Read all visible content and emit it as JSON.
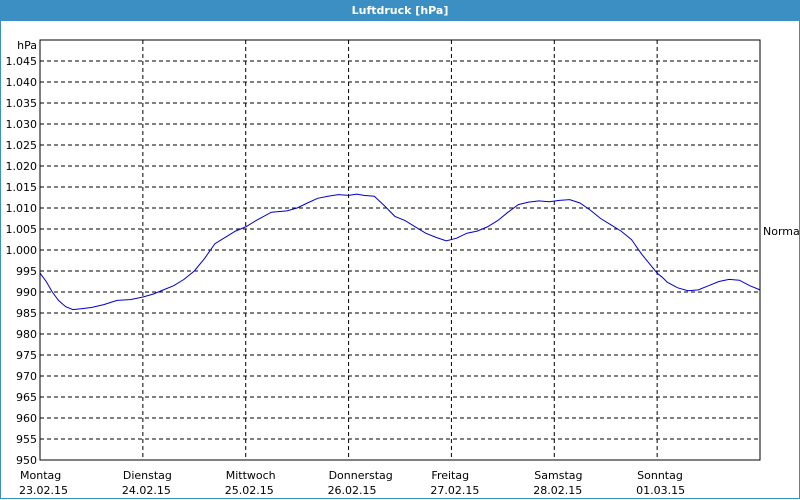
{
  "window": {
    "title": "Luftdruck [hPa]"
  },
  "chart_data": {
    "type": "line",
    "title": "Luftdruck [hPa]",
    "ylabel": "hPa",
    "ylim": [
      950,
      1050
    ],
    "yticks": [
      "950",
      "955",
      "960",
      "965",
      "970",
      "975",
      "980",
      "985",
      "990",
      "995",
      "1.000",
      "1.005",
      "1.010",
      "1.015",
      "1.020",
      "1.025",
      "1.030",
      "1.035",
      "1.040",
      "1.045"
    ],
    "x_days": [
      {
        "day": "Montag",
        "date": "23.02.15"
      },
      {
        "day": "Dienstag",
        "date": "24.02.15"
      },
      {
        "day": "Mittwoch",
        "date": "25.02.15"
      },
      {
        "day": "Donnerstag",
        "date": "26.02.15"
      },
      {
        "day": "Freitag",
        "date": "27.02.15"
      },
      {
        "day": "Samstag",
        "date": "28.02.15"
      },
      {
        "day": "Sonntag",
        "date": "01.03.15"
      }
    ],
    "reference_line": {
      "label": "Normal",
      "value": 1004.5
    },
    "grid": true,
    "xlim": [
      0,
      7
    ],
    "series": [
      {
        "color": "#0000cc",
        "x": [
          0,
          0.06,
          0.12,
          0.18,
          0.25,
          0.32,
          0.4,
          0.5,
          0.62,
          0.75,
          0.88,
          1.0,
          1.1,
          1.2,
          1.3,
          1.4,
          1.5,
          1.6,
          1.7,
          1.8,
          1.9,
          2.0,
          2.1,
          2.25,
          2.4,
          2.5,
          2.6,
          2.7,
          2.8,
          2.9,
          3.0,
          3.08,
          3.15,
          3.25,
          3.35,
          3.45,
          3.55,
          3.65,
          3.75,
          3.85,
          3.95,
          4.05,
          4.15,
          4.25,
          4.35,
          4.45,
          4.55,
          4.65,
          4.75,
          4.85,
          4.95,
          5.05,
          5.15,
          5.25,
          5.35,
          5.45,
          5.55,
          5.65,
          5.75,
          5.85,
          5.95,
          6.0,
          6.05,
          6.1,
          6.2,
          6.3,
          6.4,
          6.5,
          6.6,
          6.7,
          6.8,
          6.9,
          7.0
        ],
        "values": [
          994.5,
          992.5,
          990,
          988,
          986.5,
          985.8,
          986,
          986.3,
          987,
          988,
          988.2,
          988.8,
          989.5,
          990.5,
          991.5,
          993,
          995,
          998,
          1001.5,
          1003,
          1004.5,
          1005.5,
          1007,
          1009,
          1009.3,
          1010,
          1011.2,
          1012.3,
          1012.8,
          1013.2,
          1013,
          1013.3,
          1013,
          1012.8,
          1010.5,
          1008,
          1007,
          1005.5,
          1004,
          1003,
          1002.2,
          1002.8,
          1004,
          1004.5,
          1005.5,
          1007,
          1009,
          1010.8,
          1011.4,
          1011.7,
          1011.5,
          1011.8,
          1012,
          1011.2,
          1009.5,
          1007.5,
          1006,
          1004.5,
          1002.5,
          999,
          996,
          994.5,
          993.5,
          992.3,
          991,
          990.3,
          990.5,
          991.5,
          992.5,
          993,
          992.8,
          991.5,
          990.5
        ]
      }
    ]
  }
}
